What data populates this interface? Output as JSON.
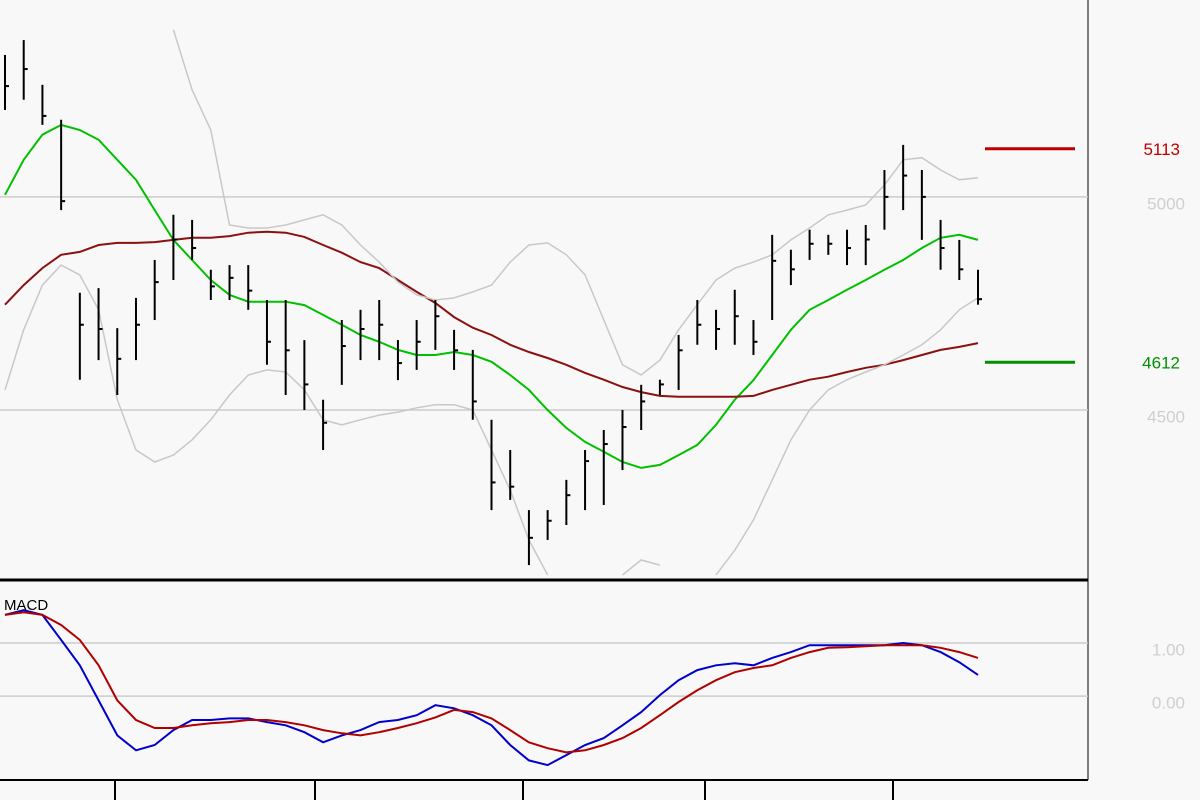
{
  "chart_data": [
    {
      "type": "ohlc",
      "ylim": [
        4101,
        5462
      ],
      "yticks": [
        4500,
        5000
      ],
      "grid": true,
      "color": "#000000",
      "high": [
        5333,
        5368,
        5263,
        5181,
        4775,
        4786,
        4692,
        4763,
        4852,
        4958,
        4946,
        4829,
        4840,
        4840,
        4758,
        4758,
        4664,
        4524,
        4711,
        4735,
        4758,
        4664,
        4711,
        4758,
        4688,
        4641,
        4477,
        4406,
        4265,
        4265,
        4336,
        4406,
        4453,
        4500,
        4559,
        4571,
        4676,
        4758,
        4735,
        4782,
        4711,
        4911,
        4876,
        4923,
        4911,
        4923,
        4934,
        5063,
        5122,
        5063,
        4946,
        4899,
        4829
      ],
      "low": [
        5204,
        5228,
        5169,
        4969,
        4571,
        4617,
        4535,
        4617,
        4711,
        4805,
        4852,
        4758,
        4758,
        4735,
        4606,
        4535,
        4500,
        4406,
        4559,
        4617,
        4617,
        4570,
        4594,
        4641,
        4594,
        4477,
        4265,
        4289,
        4136,
        4195,
        4230,
        4265,
        4277,
        4359,
        4453,
        4535,
        4547,
        4653,
        4641,
        4653,
        4629,
        4711,
        4793,
        4852,
        4864,
        4840,
        4840,
        4923,
        4969,
        4899,
        4829,
        4805,
        4747
      ],
      "close": [
        5260,
        5300,
        5190,
        4990,
        4700,
        4690,
        4620,
        4700,
        4800,
        4900,
        4880,
        4790,
        4810,
        4780,
        4660,
        4640,
        4560,
        4470,
        4650,
        4690,
        4700,
        4610,
        4660,
        4720,
        4640,
        4520,
        4330,
        4320,
        4200,
        4240,
        4300,
        4380,
        4420,
        4460,
        4520,
        4560,
        4640,
        4700,
        4690,
        4720,
        4660,
        4850,
        4830,
        4890,
        4890,
        4880,
        4900,
        5000,
        5050,
        5000,
        4880,
        4830,
        4760
      ],
      "series": [
        {
          "color": "#00c000",
          "values": [
            5005,
            5087,
            5146,
            5169,
            5157,
            5134,
            5087,
            5040,
            4969,
            4899,
            4852,
            4805,
            4770,
            4754,
            4754,
            4754,
            4746,
            4723,
            4700,
            4676,
            4660,
            4641,
            4629,
            4629,
            4636,
            4629,
            4613,
            4582,
            4547,
            4500,
            4458,
            4425,
            4402,
            4378,
            4364,
            4371,
            4394,
            4418,
            4465,
            4524,
            4570,
            4629,
            4688,
            4735,
            4758,
            4782,
            4805,
            4829,
            4852,
            4880,
            4904,
            4911,
            4899
          ]
        },
        {
          "color": "#8b1010",
          "values": [
            4747,
            4793,
            4833,
            4864,
            4871,
            4887,
            4892,
            4892,
            4894,
            4899,
            4904,
            4904,
            4908,
            4916,
            4918,
            4916,
            4906,
            4887,
            4869,
            4847,
            4833,
            4805,
            4777,
            4751,
            4718,
            4693,
            4676,
            4653,
            4636,
            4622,
            4606,
            4587,
            4571,
            4554,
            4542,
            4533,
            4531,
            4531,
            4531,
            4531,
            4533,
            4547,
            4559,
            4571,
            4578,
            4589,
            4599,
            4606,
            4617,
            4629,
            4641,
            4648,
            4657
          ]
        },
        {
          "color": "#c8c8c8",
          "values": [
            null,
            null,
            null,
            null,
            null,
            null,
            null,
            null,
            null,
            5392,
            5251,
            5157,
            4934,
            4927,
            4927,
            4934,
            4946,
            4958,
            4934,
            4887,
            4847,
            4800,
            4770,
            4758,
            4763,
            4777,
            4793,
            4847,
            4887,
            4892,
            4864,
            4817,
            4711,
            4606,
            4582,
            4617,
            4688,
            4747,
            4805,
            4833,
            4847,
            4864,
            4899,
            4927,
            4958,
            4969,
            4981,
            5028,
            5087,
            5092,
            5063,
            5040,
            5045
          ]
        },
        {
          "color": "#c8c8c8",
          "values": [
            4547,
            4688,
            4793,
            4840,
            4817,
            4735,
            4524,
            4406,
            4378,
            4394,
            4430,
            4477,
            4535,
            4582,
            4594,
            4589,
            4547,
            4477,
            4465,
            4477,
            4488,
            4495,
            4505,
            4512,
            4512,
            4500,
            4406,
            4312,
            4195,
            4113,
            null,
            null,
            null,
            4113,
            4148,
            4136,
            null,
            null,
            4113,
            4171,
            4242,
            4336,
            4430,
            4500,
            4547,
            4571,
            4589,
            4606,
            4629,
            4653,
            4688,
            4735,
            4763
          ]
        }
      ],
      "levels": [
        {
          "value": 5113,
          "color": "#c00000"
        },
        {
          "value": 4612,
          "color": "#009000"
        }
      ]
    },
    {
      "type": "line",
      "title": "MACD",
      "ylim": [
        -1.58,
        2.15
      ],
      "yticks": [
        {
          "value": 1,
          "label": "1.00"
        },
        {
          "value": 0,
          "label": "0.00"
        }
      ],
      "grid": true,
      "series": [
        {
          "color": "#0000c8",
          "values": [
            1.53,
            1.62,
            1.53,
            1.06,
            0.58,
            -0.08,
            -0.74,
            -1.02,
            -0.92,
            -0.64,
            -0.45,
            -0.45,
            -0.42,
            -0.42,
            -0.49,
            -0.55,
            -0.68,
            -0.87,
            -0.74,
            -0.64,
            -0.49,
            -0.45,
            -0.36,
            -0.17,
            -0.23,
            -0.36,
            -0.55,
            -0.92,
            -1.21,
            -1.3,
            -1.11,
            -0.92,
            -0.79,
            -0.55,
            -0.3,
            0.02,
            0.3,
            0.49,
            0.58,
            0.62,
            0.58,
            0.72,
            0.83,
            0.96,
            0.96,
            0.96,
            0.96,
            0.96,
            1.0,
            0.96,
            0.83,
            0.64,
            0.4
          ]
        },
        {
          "color": "#b00000",
          "values": [
            1.53,
            1.58,
            1.53,
            1.34,
            1.06,
            0.58,
            -0.08,
            -0.45,
            -0.6,
            -0.6,
            -0.55,
            -0.51,
            -0.49,
            -0.45,
            -0.45,
            -0.49,
            -0.55,
            -0.64,
            -0.7,
            -0.74,
            -0.68,
            -0.6,
            -0.51,
            -0.4,
            -0.26,
            -0.3,
            -0.42,
            -0.64,
            -0.87,
            -0.98,
            -1.06,
            -1.02,
            -0.92,
            -0.79,
            -0.6,
            -0.36,
            -0.11,
            0.11,
            0.3,
            0.45,
            0.53,
            0.58,
            0.72,
            0.83,
            0.91,
            0.92,
            0.94,
            0.96,
            0.96,
            0.96,
            0.91,
            0.83,
            0.72
          ]
        }
      ]
    }
  ]
}
